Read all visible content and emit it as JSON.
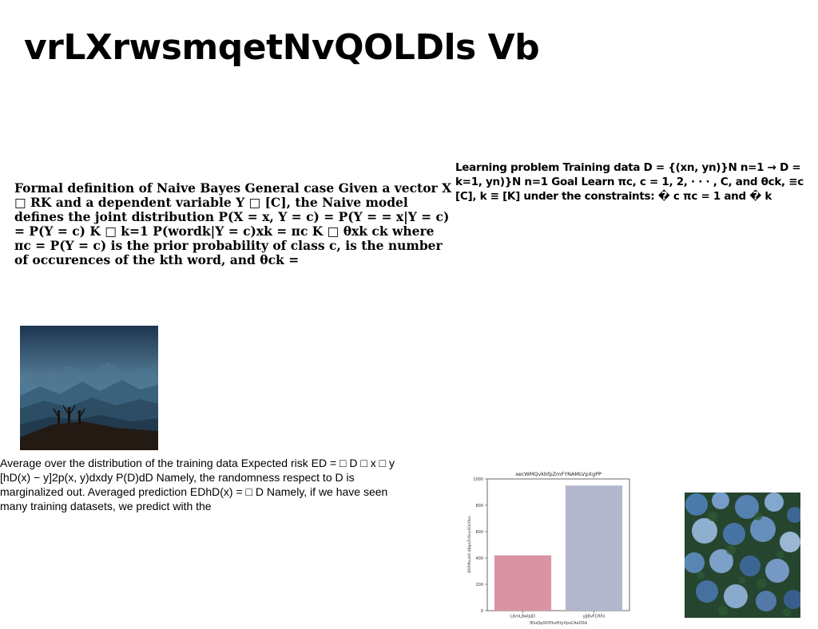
{
  "page": {
    "title": "vrLXrwsmqetNvQOLDls Vb"
  },
  "blocks": [
    "Formal definition of Naive Bayes General case Given a vector X □ RK and a dependent variable Y □ [C], the Naive model defines the joint distribution P(X = x, Y = c) = P(Y = = x|Y = c) = P(Y = c) K □ k=1 P(wordk|Y = c)xk = πc K □ θxk ck where πc = P(Y = c) is the prior probability of class c, is the number of occurences of the kth word, and θck =",
    "Learning problem Training data D = {(xn, yn)}N n=1 → D = k=1, yn)}N n=1 Goal Learn πc, c = 1, 2, · · · , C, and θck, ≡c [C], k ≡ [K] under the constraints: � c πc = 1 and � k",
    "Average over the distribution of the training data Expected risk ED = □ D □ x □ y [hD(x) − y]2p(x, y)dxdy P(D)dD Namely, the randomness respect to D is marginalized out. Averaged prediction EDhD(x) = □ D Namely, if we have seen many training datasets, we predict with the"
  ],
  "images": [
    {
      "name": "mountain-silhouette-photo"
    },
    {
      "name": "forest-aerial-photo"
    }
  ],
  "chart_data": {
    "type": "bar",
    "title": "xecWMQvkbfpZmFYNAMLVpXgPP",
    "xlabel": "lEiuQqXIOYkxHtyVpsCAoOSd",
    "ylabel": "BRRMvuHS dBgnZUGnvKOsYlkn",
    "categories": [
      "LKmL8wlpJO",
      "yJjBvFCRFo"
    ],
    "values": [
      420,
      950
    ],
    "colors": [
      "#d994a3",
      "#b3b7cd"
    ],
    "ylim": [
      0,
      1000
    ],
    "yticks": [
      0,
      200,
      400,
      600,
      800,
      1000
    ],
    "grid": false
  }
}
